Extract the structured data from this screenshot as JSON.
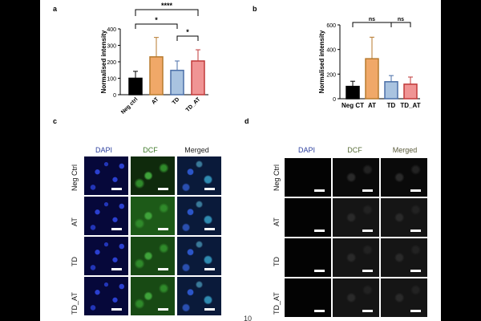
{
  "panels": {
    "a": "a",
    "b": "b",
    "c": "c",
    "d": "d"
  },
  "chart_data": [
    {
      "type": "bar",
      "panel": "a",
      "ylabel": "Normalised intensity",
      "xlabel": "",
      "ylim": [
        0,
        400
      ],
      "yticks": [
        "0",
        "100",
        "200",
        "300",
        "400"
      ],
      "categories": [
        "Neg ctrl",
        "AT",
        "TD",
        "TD_AT"
      ],
      "values": [
        100,
        230,
        148,
        205
      ],
      "errors": [
        42,
        118,
        57,
        68
      ],
      "colors": [
        "#000000",
        "#f0a868",
        "#a9c3e0",
        "#f09494"
      ],
      "edge_colors": [
        "#000000",
        "#b77a2e",
        "#4a6fa8",
        "#c03a3a"
      ],
      "significance": [
        {
          "from": 0,
          "to": 3,
          "label": "****"
        },
        {
          "from": 0,
          "to": 2,
          "label": "*"
        },
        {
          "from": 2,
          "to": 3,
          "label": "*"
        }
      ]
    },
    {
      "type": "bar",
      "panel": "b",
      "ylabel": "Normalised intensity",
      "xlabel": "",
      "ylim": [
        0,
        600
      ],
      "yticks": [
        "0",
        "200",
        "400",
        "600"
      ],
      "categories": [
        "Neg CT",
        "AT",
        "TD",
        "TD_AT"
      ],
      "values": [
        100,
        325,
        138,
        118
      ],
      "errors": [
        42,
        175,
        50,
        58
      ],
      "colors": [
        "#000000",
        "#f0a868",
        "#a9c3e0",
        "#f09494"
      ],
      "edge_colors": [
        "#000000",
        "#b77a2e",
        "#4a6fa8",
        "#c03a3a"
      ],
      "significance": [
        {
          "from": 0,
          "to": 3,
          "label": "ns"
        },
        {
          "from": 0,
          "to": 2,
          "label": "ns"
        },
        {
          "from": 2,
          "to": 3,
          "label": "ns"
        }
      ]
    }
  ],
  "micrographs": {
    "c": {
      "columns": [
        "DAPI",
        "DCF",
        "Merged"
      ],
      "column_colors": [
        "#2c3f9e",
        "#3f7a2a",
        "#222222"
      ],
      "rows": [
        "Neg Ctrl",
        "AT",
        "TD",
        "TD_AT"
      ]
    },
    "d": {
      "columns": [
        "DAPI",
        "DCF",
        "Merged"
      ],
      "column_colors": [
        "#2c3f9e",
        "#5a6e3a",
        "#5a5a3a"
      ],
      "rows": [
        "Neg Ctrl",
        "AT",
        "TD",
        "TD_AT"
      ]
    }
  },
  "page_number": "10"
}
